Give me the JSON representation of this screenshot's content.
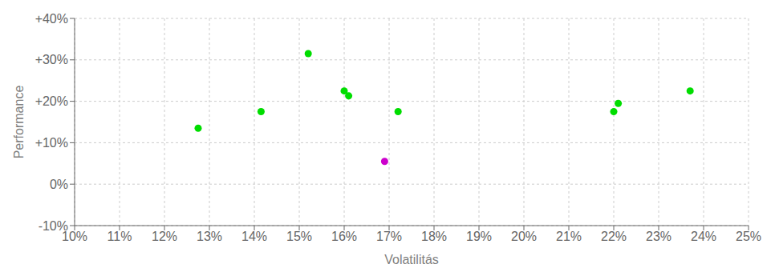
{
  "chart_data": {
    "type": "scatter",
    "xlabel": "Volatilitás",
    "ylabel": "Performance",
    "xlim": [
      0.1,
      0.25
    ],
    "ylim": [
      -0.1,
      0.4
    ],
    "xticks": [
      {
        "value": 0.1,
        "label": "10%"
      },
      {
        "value": 0.11,
        "label": "11%"
      },
      {
        "value": 0.12,
        "label": "12%"
      },
      {
        "value": 0.13,
        "label": "13%"
      },
      {
        "value": 0.14,
        "label": "14%"
      },
      {
        "value": 0.15,
        "label": "15%"
      },
      {
        "value": 0.16,
        "label": "16%"
      },
      {
        "value": 0.17,
        "label": "17%"
      },
      {
        "value": 0.18,
        "label": "18%"
      },
      {
        "value": 0.19,
        "label": "19%"
      },
      {
        "value": 0.2,
        "label": "20%"
      },
      {
        "value": 0.21,
        "label": "21%"
      },
      {
        "value": 0.22,
        "label": "22%"
      },
      {
        "value": 0.23,
        "label": "23%"
      },
      {
        "value": 0.24,
        "label": "24%"
      },
      {
        "value": 0.25,
        "label": "25%"
      }
    ],
    "yticks": [
      {
        "value": -0.1,
        "label": "-10%"
      },
      {
        "value": 0.0,
        "label": "0%"
      },
      {
        "value": 0.1,
        "label": "+10%"
      },
      {
        "value": 0.2,
        "label": "+20%"
      },
      {
        "value": 0.3,
        "label": "+30%"
      },
      {
        "value": 0.4,
        "label": "+40%"
      }
    ],
    "grid": true,
    "series": [
      {
        "color": "#00dd00",
        "x": [
          0.1275,
          0.1415,
          0.152,
          0.16,
          0.161,
          0.172,
          0.22,
          0.221,
          0.237
        ],
        "y": [
          0.135,
          0.175,
          0.315,
          0.225,
          0.213,
          0.175,
          0.175,
          0.195,
          0.225
        ]
      },
      {
        "color": "#cc00cc",
        "x": [
          0.169
        ],
        "y": [
          0.055
        ]
      }
    ]
  }
}
